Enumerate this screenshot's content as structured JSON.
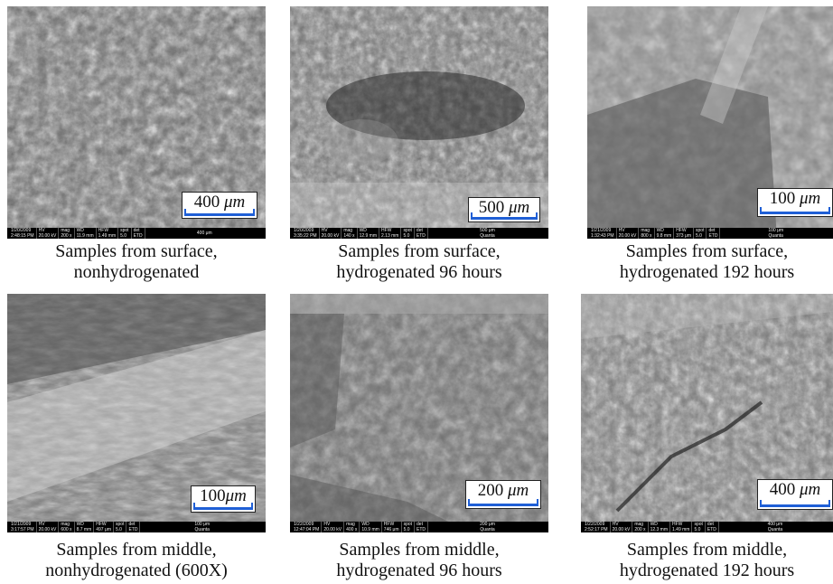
{
  "panels": [
    {
      "scale": {
        "value": "400",
        "unit": "μm"
      },
      "databar": {
        "date": "1/20/2009",
        "time": "2:48:15 PM",
        "hv": "20.00 kV",
        "mag": "200 x",
        "wd": "11.9 mm",
        "hfw": "1.49 mm",
        "spot": "5.0",
        "det": "ETD",
        "scale": "400 μm",
        "brand": ""
      },
      "caption": [
        "Samples from surface,",
        "nonhydrogenated"
      ]
    },
    {
      "scale": {
        "value": "500",
        "unit": "μm"
      },
      "databar": {
        "date": "1/20/2009",
        "time": "3:35:22 PM",
        "hv": "20.00 kV",
        "mag": "140 x",
        "wd": "12.9 mm",
        "hfw": "2.13 mm",
        "spot": "5.0",
        "det": "ETD",
        "scale": "500 μm",
        "brand": "Quanta"
      },
      "caption": [
        "Samples from surface,",
        "hydrogenated 96 hours"
      ]
    },
    {
      "scale": {
        "value": "100",
        "unit": "μm"
      },
      "databar": {
        "date": "1/21/2009",
        "time": "1:32:43 PM",
        "hv": "20.00 kV",
        "mag": "800 x",
        "wd": "9.8 mm",
        "hfw": "373 μm",
        "spot": "5.0",
        "det": "ETD",
        "scale": "100 μm",
        "brand": "Quanta"
      },
      "caption": [
        "Samples from surface,",
        "hydrogenated 192 hours"
      ]
    },
    {
      "scale": {
        "value": "100",
        "unit": "μm"
      },
      "databar": {
        "date": "1/21/2009",
        "time": "3:17:57 PM",
        "hv": "20.00 kV",
        "mag": "600 x",
        "wd": "8.7 mm",
        "hfw": "497 μm",
        "spot": "5.0",
        "det": "ETD",
        "scale": "100 μm",
        "brand": "Quanta"
      },
      "caption": [
        "Samples from middle,",
        "nonhydrogenated (600X)"
      ]
    },
    {
      "scale": {
        "value": "200",
        "unit": "μm"
      },
      "databar": {
        "date": "1/22/2009",
        "time": "12:47:04 PM",
        "hv": "20.00 kV",
        "mag": "400 x",
        "wd": "10.9 mm",
        "hfw": "746 μm",
        "spot": "5.0",
        "det": "ETD",
        "scale": "200 μm",
        "brand": "Quanta"
      },
      "caption": [
        "Samples from middle,",
        "hydrogenated 96 hours"
      ]
    },
    {
      "scale": {
        "value": "400",
        "unit": "μm"
      },
      "databar": {
        "date": "1/22/2009",
        "time": "2:52:17 PM",
        "hv": "20.00 kV",
        "mag": "200 x",
        "wd": "12.3 mm",
        "hfw": "1.49 mm",
        "spot": "5.0",
        "det": "ETD",
        "scale": "400 μm",
        "brand": "Quanta"
      },
      "caption": [
        "Samples from middle,",
        "hydrogenated 192 hours"
      ]
    }
  ],
  "databar_labels": {
    "hv": "HV",
    "mag": "mag",
    "wd": "WD",
    "hfw": "HFW",
    "spot": "spot",
    "det": "det"
  }
}
